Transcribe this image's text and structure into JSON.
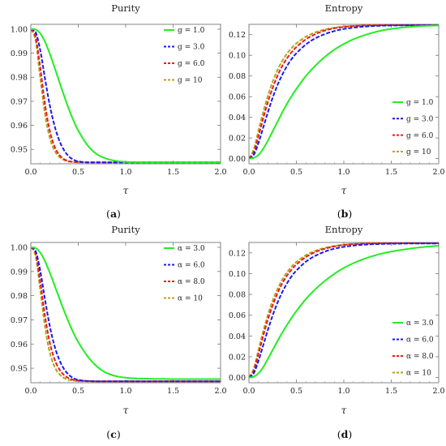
{
  "chart_data": [
    {
      "id": "a",
      "type": "line",
      "title": "Purity",
      "xlabel": "τ",
      "panel_label": "(a)",
      "xlim": [
        0,
        2.0
      ],
      "ylim": [
        0.944,
        1.002
      ],
      "x_ticks": [
        "0.0",
        "0.5",
        "1.0",
        "1.5",
        "2.0"
      ],
      "y_ticks": [
        "0.95",
        "0.96",
        "0.97",
        "0.98",
        "0.99",
        "1.00"
      ],
      "legend_position": "top-right",
      "x": [
        0.0,
        0.05,
        0.1,
        0.15,
        0.2,
        0.25,
        0.3,
        0.35,
        0.4,
        0.45,
        0.5,
        0.6,
        0.7,
        0.8,
        0.9,
        1.0,
        1.1,
        1.2,
        1.3,
        1.4,
        1.5,
        1.6,
        1.7,
        1.8,
        1.9,
        2.0
      ],
      "series": [
        {
          "name": "g = 1.0",
          "color": "#22ee22",
          "dash": "solid",
          "values": [
            1.0,
            0.9998,
            0.9982,
            0.9947,
            0.9898,
            0.9841,
            0.9782,
            0.9724,
            0.9669,
            0.962,
            0.9578,
            0.9516,
            0.9479,
            0.9461,
            0.9452,
            0.9448,
            0.9447,
            0.9446,
            0.9446,
            0.9446,
            0.9446,
            0.9446,
            0.9446,
            0.9446,
            0.9446,
            0.9446
          ]
        },
        {
          "name": "g = 3.0",
          "color": "#1a1aee",
          "dash": "dashed",
          "values": [
            1.0,
            0.9988,
            0.9911,
            0.9793,
            0.9683,
            0.9598,
            0.9537,
            0.9497,
            0.9471,
            0.9457,
            0.945,
            0.9446,
            0.9446,
            0.9446,
            0.9446,
            0.9446,
            0.9446,
            0.9446,
            0.9446,
            0.9446,
            0.9446,
            0.9446,
            0.9446,
            0.9446,
            0.9446,
            0.9446
          ]
        },
        {
          "name": "g = 6.0",
          "color": "#ee1a1a",
          "dash": "dashed",
          "values": [
            1.0,
            0.997,
            0.9839,
            0.9686,
            0.9577,
            0.9512,
            0.9477,
            0.9459,
            0.9451,
            0.9448,
            0.9447,
            0.9446,
            0.9446,
            0.9446,
            0.9446,
            0.9446,
            0.9446,
            0.9446,
            0.9446,
            0.9446,
            0.9446,
            0.9446,
            0.9446,
            0.9446,
            0.9446,
            0.9446
          ]
        },
        {
          "name": "g = 10",
          "color": "#b5a21f",
          "dash": "dashed",
          "values": [
            1.0,
            0.9952,
            0.9795,
            0.9645,
            0.9548,
            0.9495,
            0.9469,
            0.9456,
            0.945,
            0.9447,
            0.9446,
            0.9446,
            0.9446,
            0.9446,
            0.9446,
            0.9446,
            0.9446,
            0.9446,
            0.9446,
            0.9446,
            0.9446,
            0.9446,
            0.9446,
            0.9446,
            0.9446,
            0.9446
          ]
        }
      ]
    },
    {
      "id": "b",
      "type": "line",
      "title": "Entropy",
      "xlabel": "τ",
      "panel_label": "(b)",
      "xlim": [
        0,
        2.0
      ],
      "ylim": [
        -0.005,
        0.13
      ],
      "x_ticks": [
        "0.0",
        "0.5",
        "1.0",
        "1.5",
        "2.0"
      ],
      "y_ticks": [
        "0.00",
        "0.02",
        "0.04",
        "0.06",
        "0.08",
        "0.10",
        "0.12"
      ],
      "legend_position": "bottom-right",
      "x": [
        0.0,
        0.05,
        0.1,
        0.15,
        0.2,
        0.25,
        0.3,
        0.35,
        0.4,
        0.45,
        0.5,
        0.6,
        0.7,
        0.8,
        0.9,
        1.0,
        1.1,
        1.2,
        1.3,
        1.4,
        1.5,
        1.6,
        1.7,
        1.8,
        1.9,
        2.0
      ],
      "series": [
        {
          "name": "g = 1.0",
          "color": "#22ee22",
          "dash": "solid",
          "values": [
            0.0,
            0.0007,
            0.0035,
            0.0095,
            0.0175,
            0.0265,
            0.0355,
            0.0445,
            0.053,
            0.0605,
            0.0675,
            0.08,
            0.09,
            0.0985,
            0.1055,
            0.111,
            0.1155,
            0.119,
            0.1218,
            0.124,
            0.1256,
            0.1268,
            0.1276,
            0.1282,
            0.1286,
            0.1289
          ]
        },
        {
          "name": "g = 3.0",
          "color": "#1a1aee",
          "dash": "dashed",
          "values": [
            0.0,
            0.0035,
            0.015,
            0.03,
            0.045,
            0.059,
            0.071,
            0.081,
            0.0895,
            0.0965,
            0.102,
            0.1105,
            0.1165,
            0.1205,
            0.1235,
            0.1255,
            0.1268,
            0.1277,
            0.1283,
            0.1287,
            0.1289,
            0.129,
            0.1291,
            0.1291,
            0.1292,
            0.1292
          ]
        },
        {
          "name": "g = 6.0",
          "color": "#ee1a1a",
          "dash": "dashed",
          "values": [
            0.0,
            0.006,
            0.0215,
            0.039,
            0.055,
            0.0685,
            0.08,
            0.0895,
            0.097,
            0.103,
            0.108,
            0.1155,
            0.1205,
            0.124,
            0.1262,
            0.1275,
            0.1283,
            0.1288,
            0.129,
            0.1291,
            0.1292,
            0.1292,
            0.1292,
            0.1292,
            0.1292,
            0.1292
          ]
        },
        {
          "name": "g = 10",
          "color": "#b5a21f",
          "dash": "dashed",
          "values": [
            0.0,
            0.009,
            0.027,
            0.045,
            0.061,
            0.0745,
            0.0855,
            0.0945,
            0.1015,
            0.107,
            0.1115,
            0.118,
            0.1222,
            0.125,
            0.1268,
            0.1279,
            0.1286,
            0.1289,
            0.1291,
            0.1292,
            0.1292,
            0.1292,
            0.1292,
            0.1292,
            0.1292,
            0.1292
          ]
        }
      ]
    },
    {
      "id": "c",
      "type": "line",
      "title": "Purity",
      "xlabel": "τ",
      "panel_label": "(c)",
      "xlim": [
        0,
        2.0
      ],
      "ylim": [
        0.944,
        1.002
      ],
      "x_ticks": [
        "0.0",
        "0.5",
        "1.0",
        "1.5",
        "2.0"
      ],
      "y_ticks": [
        "0.95",
        "0.96",
        "0.97",
        "0.98",
        "0.99",
        "1.00"
      ],
      "legend_position": "top-right",
      "x": [
        0.0,
        0.05,
        0.1,
        0.15,
        0.2,
        0.25,
        0.3,
        0.35,
        0.4,
        0.45,
        0.5,
        0.6,
        0.7,
        0.8,
        0.9,
        1.0,
        1.1,
        1.2,
        1.3,
        1.4,
        1.5,
        1.6,
        1.7,
        1.8,
        1.9,
        2.0
      ],
      "series": [
        {
          "name": "α = 3.0",
          "color": "#22ee22",
          "dash": "solid",
          "values": [
            1.0,
            0.9997,
            0.9978,
            0.9942,
            0.9895,
            0.9843,
            0.979,
            0.9738,
            0.969,
            0.9646,
            0.9608,
            0.9548,
            0.9506,
            0.948,
            0.9467,
            0.9461,
            0.9458,
            0.9457,
            0.9456,
            0.9456,
            0.9455,
            0.9455,
            0.9455,
            0.9455,
            0.9455,
            0.9455
          ]
        },
        {
          "name": "α = 6.0",
          "color": "#1a1aee",
          "dash": "dashed",
          "values": [
            1.0,
            0.9985,
            0.9902,
            0.9783,
            0.9674,
            0.9592,
            0.9535,
            0.9497,
            0.9473,
            0.9459,
            0.9452,
            0.9447,
            0.9446,
            0.9446,
            0.9446,
            0.9446,
            0.9446,
            0.9446,
            0.9446,
            0.9446,
            0.9446,
            0.9446,
            0.9446,
            0.9446,
            0.9446,
            0.9446
          ]
        },
        {
          "name": "α = 8.0",
          "color": "#ee1a1a",
          "dash": "dashed",
          "values": [
            1.0,
            0.9975,
            0.9858,
            0.9715,
            0.9606,
            0.9537,
            0.9496,
            0.9472,
            0.9459,
            0.9452,
            0.9449,
            0.9447,
            0.9446,
            0.9446,
            0.9446,
            0.9446,
            0.9446,
            0.9446,
            0.9446,
            0.9446,
            0.9446,
            0.9446,
            0.9446,
            0.9446,
            0.9446,
            0.9446
          ]
        },
        {
          "name": "α = 10",
          "color": "#b5a21f",
          "dash": "dashed",
          "values": [
            1.0,
            0.9965,
            0.9822,
            0.967,
            0.9565,
            0.9507,
            0.9476,
            0.946,
            0.9452,
            0.9449,
            0.9447,
            0.9446,
            0.9446,
            0.9446,
            0.9446,
            0.9446,
            0.9446,
            0.9446,
            0.9446,
            0.9446,
            0.9446,
            0.9446,
            0.9446,
            0.9446,
            0.9446,
            0.9446
          ]
        }
      ]
    },
    {
      "id": "d",
      "type": "line",
      "title": "Entropy",
      "xlabel": "τ",
      "panel_label": "(d)",
      "xlim": [
        0,
        2.0
      ],
      "ylim": [
        -0.005,
        0.13
      ],
      "x_ticks": [
        "0.0",
        "0.5",
        "1.0",
        "1.5",
        "2.0"
      ],
      "y_ticks": [
        "0.00",
        "0.02",
        "0.04",
        "0.06",
        "0.08",
        "0.10",
        "0.12"
      ],
      "legend_position": "bottom-right",
      "x": [
        0.0,
        0.05,
        0.1,
        0.15,
        0.2,
        0.25,
        0.3,
        0.35,
        0.4,
        0.45,
        0.5,
        0.6,
        0.7,
        0.8,
        0.9,
        1.0,
        1.1,
        1.2,
        1.3,
        1.4,
        1.5,
        1.6,
        1.7,
        1.8,
        1.9,
        2.0
      ],
      "series": [
        {
          "name": "α = 3.0",
          "color": "#22ee22",
          "dash": "solid",
          "values": [
            0.0,
            0.0008,
            0.004,
            0.01,
            0.018,
            0.0265,
            0.035,
            0.043,
            0.0505,
            0.0575,
            0.064,
            0.0755,
            0.085,
            0.093,
            0.0998,
            0.1055,
            0.11,
            0.1138,
            0.1168,
            0.1193,
            0.1212,
            0.1228,
            0.1241,
            0.1252,
            0.1261,
            0.1268
          ]
        },
        {
          "name": "α = 6.0",
          "color": "#1a1aee",
          "dash": "dashed",
          "values": [
            0.0,
            0.004,
            0.016,
            0.031,
            0.046,
            0.0598,
            0.0718,
            0.082,
            0.0905,
            0.0975,
            0.103,
            0.1115,
            0.1172,
            0.1212,
            0.124,
            0.1258,
            0.127,
            0.1278,
            0.1283,
            0.1286,
            0.1288,
            0.1289,
            0.129,
            0.129,
            0.129,
            0.129
          ]
        },
        {
          "name": "α = 8.0",
          "color": "#ee1a1a",
          "dash": "dashed",
          "values": [
            0.0,
            0.0065,
            0.0225,
            0.04,
            0.056,
            0.0695,
            0.081,
            0.0905,
            0.098,
            0.104,
            0.1088,
            0.116,
            0.1208,
            0.124,
            0.1262,
            0.1276,
            0.1284,
            0.1288,
            0.129,
            0.1291,
            0.1292,
            0.1292,
            0.1292,
            0.1292,
            0.1292,
            0.1292
          ]
        },
        {
          "name": "α = 10",
          "color": "#b5a21f",
          "dash": "dashed",
          "values": [
            0.0,
            0.0085,
            0.0265,
            0.0445,
            0.0605,
            0.074,
            0.085,
            0.094,
            0.1012,
            0.1068,
            0.1112,
            0.1178,
            0.122,
            0.1248,
            0.1267,
            0.1279,
            0.1286,
            0.1289,
            0.1291,
            0.1292,
            0.1292,
            0.1292,
            0.1292,
            0.1292,
            0.1292,
            0.1292
          ]
        }
      ]
    }
  ]
}
